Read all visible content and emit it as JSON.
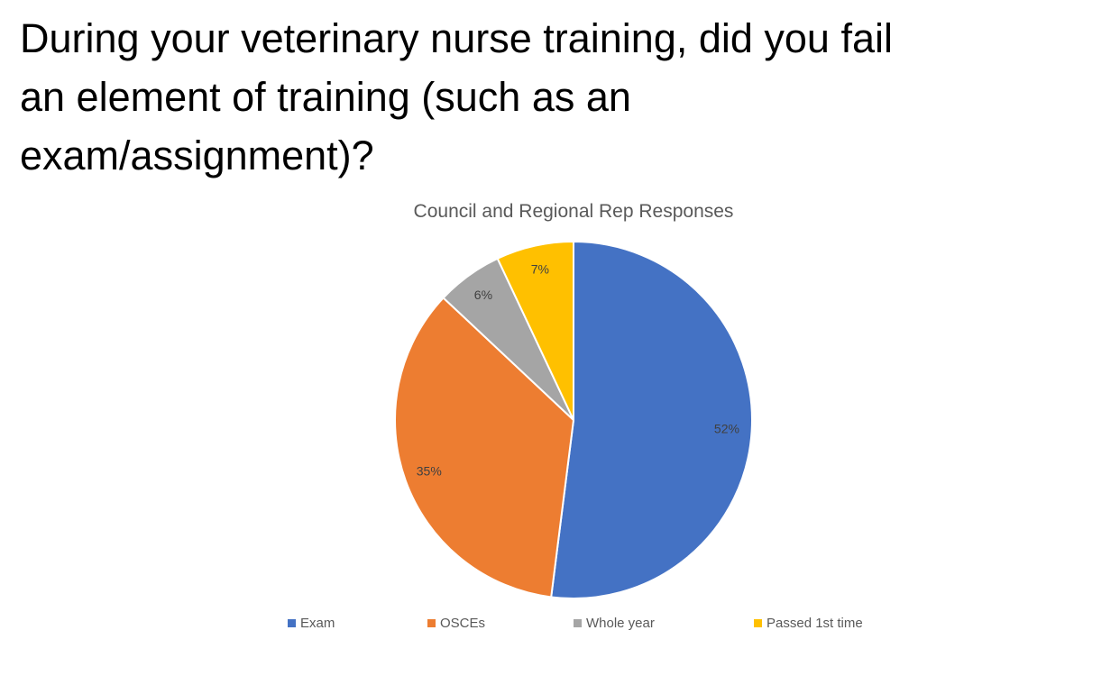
{
  "heading_lines": [
    "During your veterinary nurse training, did you fail",
    "an element of training (such as an",
    "exam/assignment)?"
  ],
  "chart_data": {
    "type": "pie",
    "title": "Council and Regional Rep Responses",
    "categories": [
      "Exam",
      "OSCEs",
      "Whole year",
      "Passed 1st time"
    ],
    "values": [
      52,
      35,
      6,
      7
    ],
    "value_labels": [
      "52%",
      "35%",
      "6%",
      "7%"
    ],
    "colors": [
      "#4472c4",
      "#ed7d31",
      "#a5a5a5",
      "#ffc000"
    ],
    "legend": "bottom"
  }
}
